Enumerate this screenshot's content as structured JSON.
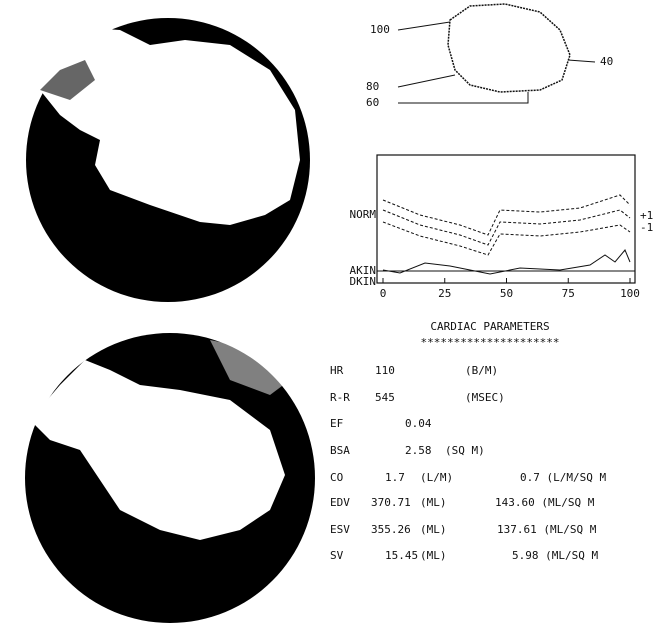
{
  "contour": {
    "labels": [
      "100",
      "80",
      "60",
      "40"
    ]
  },
  "wall_motion": {
    "type": "line",
    "y_labels": [
      "NORM",
      "AKIN",
      "DKIN"
    ],
    "band_labels": [
      "+1",
      "-1"
    ],
    "xlim": [
      0,
      100
    ],
    "xticks": [
      0,
      25,
      50,
      75,
      100
    ]
  },
  "parameters": {
    "title": "CARDIAC PARAMETERS",
    "divider": "*********************",
    "rows": [
      [
        "HR",
        "110",
        "(B/M)"
      ],
      [
        "R-R",
        "545",
        "(MSEC)"
      ],
      [
        "EF",
        "0.04"
      ],
      [
        "BSA",
        "2.58",
        "(SQ M)"
      ],
      [
        "CO",
        "1.7",
        "(L/M)",
        "0.7 (L/M/SQ M"
      ],
      [
        "EDV",
        "370.71",
        "(ML)",
        "143.60 (ML/SQ M"
      ],
      [
        "ESV",
        "355.26",
        "(ML)",
        "137.61 (ML/SQ M"
      ],
      [
        "SV",
        "15.45",
        "(ML)",
        "5.98 (ML/SQ M"
      ]
    ]
  }
}
